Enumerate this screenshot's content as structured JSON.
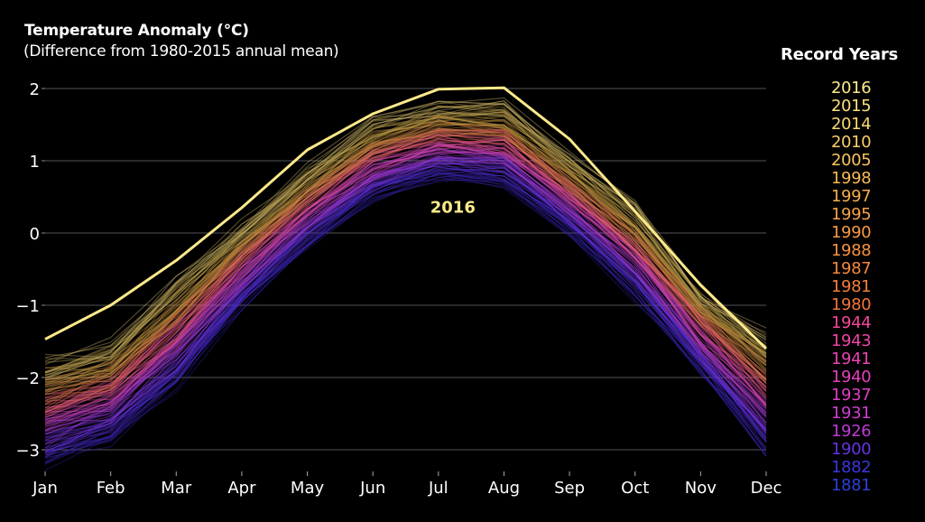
{
  "chart_data": {
    "type": "line",
    "title": "Temperature Anomaly (°C)",
    "subtitle": "(Difference from 1980-2015 annual mean)",
    "xlabel": "",
    "ylabel": "Temperature Anomaly (°C)",
    "categories": [
      "Jan",
      "Feb",
      "Mar",
      "Apr",
      "May",
      "Jun",
      "Jul",
      "Aug",
      "Sep",
      "Oct",
      "Nov",
      "Dec"
    ],
    "ylim": [
      -3.3,
      2.1
    ],
    "yticks": [
      2,
      1,
      0,
      -1,
      -2,
      -3
    ],
    "ytick_labels": [
      "2",
      "1",
      "0",
      "−1",
      "−2",
      "−3"
    ],
    "grid": true,
    "legend_title": "Record Years",
    "legend_placement": "right",
    "legend": [
      {
        "label": "2016",
        "color": "#fde98a"
      },
      {
        "label": "2015",
        "color": "#fbe07e"
      },
      {
        "label": "2014",
        "color": "#f9d873"
      },
      {
        "label": "2010",
        "color": "#f8ce68"
      },
      {
        "label": "2005",
        "color": "#f7c45e"
      },
      {
        "label": "1998",
        "color": "#f7b954"
      },
      {
        "label": "1997",
        "color": "#f7ae4d"
      },
      {
        "label": "1995",
        "color": "#f7a346"
      },
      {
        "label": "1990",
        "color": "#f79a42"
      },
      {
        "label": "1988",
        "color": "#f7913f"
      },
      {
        "label": "1987",
        "color": "#f6883d"
      },
      {
        "label": "1981",
        "color": "#f47e3c"
      },
      {
        "label": "1980",
        "color": "#f2753c"
      },
      {
        "label": "1944",
        "color": "#f2479a"
      },
      {
        "label": "1943",
        "color": "#ee45a6"
      },
      {
        "label": "1941",
        "color": "#ea43b2"
      },
      {
        "label": "1940",
        "color": "#e541bd"
      },
      {
        "label": "1937",
        "color": "#de3fc6"
      },
      {
        "label": "1931",
        "color": "#d03dd0"
      },
      {
        "label": "1926",
        "color": "#bd3ad8"
      },
      {
        "label": "1900",
        "color": "#6433e0"
      },
      {
        "label": "1882",
        "color": "#3a37dc"
      },
      {
        "label": "1881",
        "color": "#2f3fd8"
      }
    ],
    "highlight": {
      "name": "2016",
      "color": "#fde98a",
      "values": [
        -1.47,
        -1.0,
        -0.38,
        0.35,
        1.15,
        1.65,
        1.99,
        2.01,
        1.3,
        0.3,
        -0.72,
        -1.6
      ]
    },
    "annotations": [
      {
        "text": "2016",
        "x": "Jul",
        "y": 0.28
      }
    ],
    "background_series_envelope": {
      "description": "Many faint year lines (1880-2015) colored from blue/purple (oldest) to pink, orange and gold (most recent)",
      "upper": [
        -1.7,
        -1.45,
        -0.6,
        0.2,
        0.95,
        1.6,
        1.85,
        1.85,
        1.1,
        0.45,
        -0.7,
        -1.3
      ],
      "lower": [
        -3.3,
        -2.95,
        -2.2,
        -1.1,
        -0.25,
        0.4,
        0.72,
        0.6,
        -0.05,
        -0.95,
        -2.0,
        -3.15
      ]
    }
  }
}
